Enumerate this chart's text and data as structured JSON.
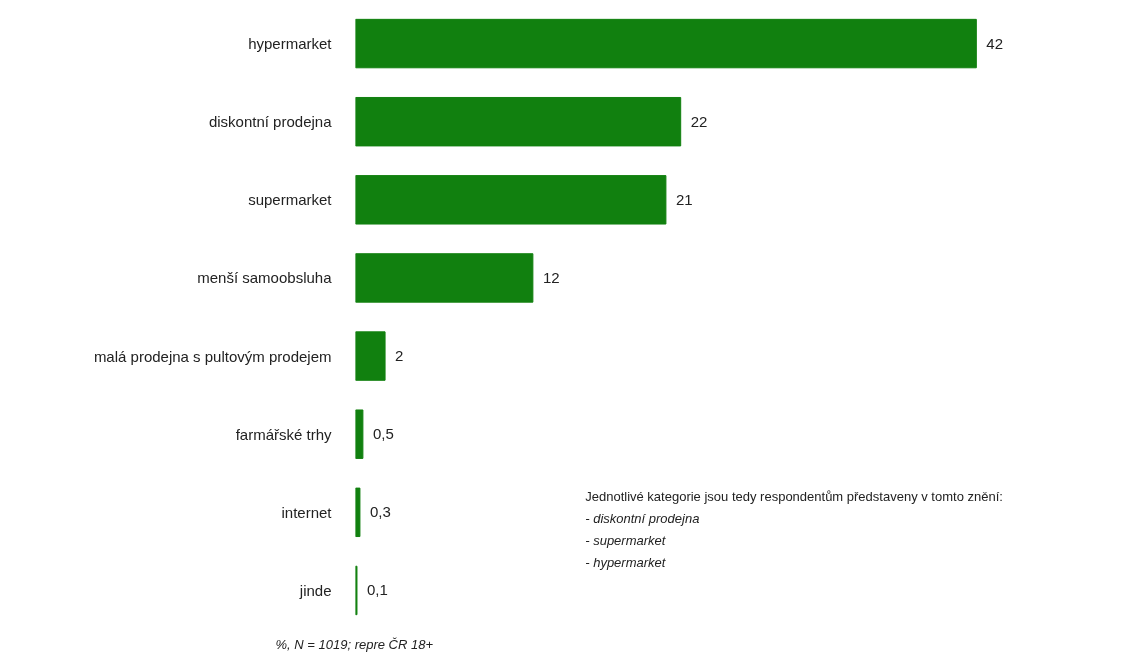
{
  "chart_data": {
    "type": "bar",
    "orientation": "horizontal",
    "categories": [
      "hypermarket",
      "diskontní prodejna",
      "supermarket",
      "menší samoobsluha",
      "malá prodejna s pultovým prodejem",
      "farmářské trhy",
      "internet",
      "jinde"
    ],
    "values": [
      42,
      22,
      21,
      12,
      2,
      0.5,
      0.3,
      0.1
    ],
    "value_labels": [
      "42",
      "22",
      "21",
      "12",
      "2",
      "0,5",
      "0,3",
      "0,1"
    ],
    "color": "#11800f",
    "grid": false,
    "annotations": [
      "Jednotlivé kategorie jsou tedy respondentům představeny v tomto znění:",
      "- diskontní prodejna",
      "- supermarket",
      "- hypermarket",
      "%, N = 1019; repre ČR 18+"
    ]
  }
}
